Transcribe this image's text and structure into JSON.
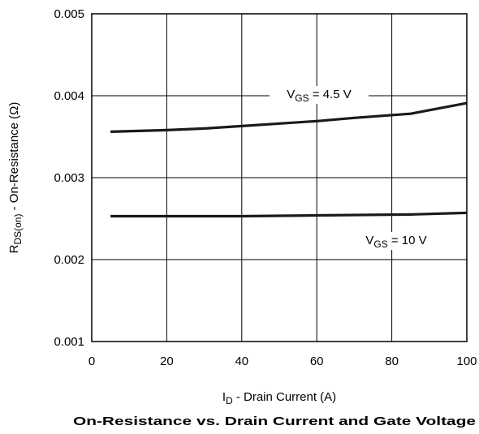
{
  "chart_data": {
    "type": "line",
    "title": "On-Resistance vs. Drain Current and Gate Voltage",
    "xlabel": {
      "main": "I",
      "sub": "D",
      "rest": " - Drain Current (A)"
    },
    "ylabel": {
      "main": "R",
      "sub": "DS(on)",
      "rest": " - On-Resistance (Ω)"
    },
    "xlim": [
      0,
      100
    ],
    "ylim": [
      0.001,
      0.005
    ],
    "x_ticks": [
      0,
      20,
      40,
      60,
      80,
      100
    ],
    "x_tick_labels": [
      "0",
      "20",
      "40",
      "60",
      "80",
      "100"
    ],
    "y_ticks": [
      0.001,
      0.002,
      0.003,
      0.004,
      0.005
    ],
    "y_tick_labels": [
      "0.001",
      "0.002",
      "0.003",
      "0.004",
      "0.005"
    ],
    "grid": true,
    "series": [
      {
        "name": "VGS = 4.5 V",
        "label": {
          "main": "V",
          "sub": "GS",
          "rest": " = 4.5 V"
        },
        "color": "#1a1a1a",
        "x": [
          5,
          20,
          30,
          40,
          50,
          60,
          70,
          85,
          100
        ],
        "y": [
          0.00356,
          0.00358,
          0.0036,
          0.00363,
          0.00366,
          0.00369,
          0.00373,
          0.00378,
          0.00391
        ]
      },
      {
        "name": "VGS = 10 V",
        "label": {
          "main": "V",
          "sub": "GS",
          "rest": " = 10 V"
        },
        "color": "#1a1a1a",
        "x": [
          5,
          20,
          40,
          60,
          85,
          100
        ],
        "y": [
          0.00253,
          0.00253,
          0.00253,
          0.00254,
          0.00255,
          0.00257
        ]
      }
    ]
  }
}
